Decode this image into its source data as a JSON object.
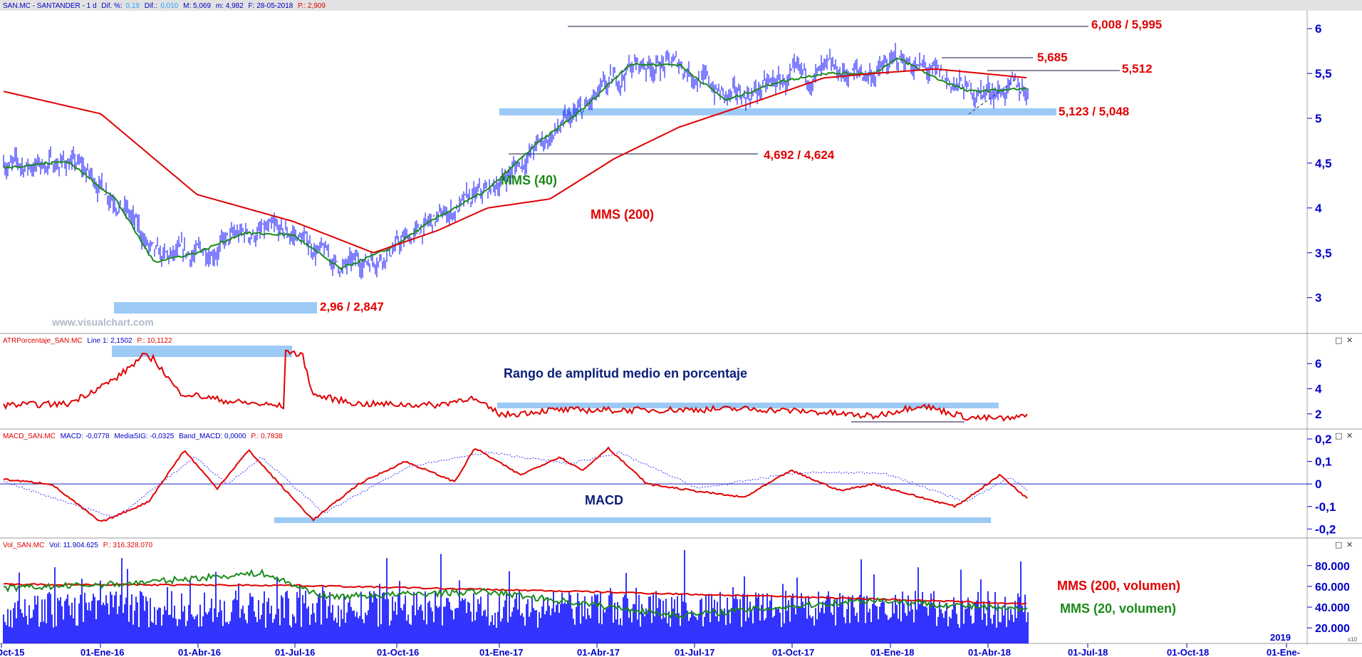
{
  "colors": {
    "price": "#0000ff",
    "mms40": "#1a8a1a",
    "mms200": "#e00000",
    "zone": "#9ccaf5",
    "axis_text": "#0000c8",
    "label_red": "#e00000",
    "label_navy": "#0a1e78"
  },
  "panels": {
    "price": {
      "header": {
        "symbol": "SAN.MC - SANTANDER - 1 d",
        "dif_pct_label": "Dif. %:",
        "dif_pct": "0,19",
        "dif_label": "Dif.:",
        "dif": "0,010",
        "max": "M: 5,069",
        "min": "m: 4,982",
        "date": "F: 28-05-2018",
        "p": "P.: 2,909"
      },
      "watermark": "www.visualchart.com",
      "labels": {
        "mms40": "MMS (40)",
        "mms200": "MMS (200)"
      }
    },
    "atr": {
      "header": {
        "name": "ATRPorcentaje_SAN.MC",
        "line": "Line 1: 2,1502",
        "p": "P.: 10,1122"
      },
      "caption": "Rango de amplitud medio en porcentaje"
    },
    "macd": {
      "header": {
        "name": "MACD_SAN.MC",
        "macd": "MACD: -0,0778",
        "signal": "MediaSIG: -0,0325",
        "band": "Band_MACD: 0,0000",
        "p": "P.: 0,7838"
      },
      "caption": "MACD"
    },
    "volume": {
      "header": {
        "name": "Vol_SAN.MC",
        "vol": "Vol: 11.904.625",
        "p": "P.: 316.328.070"
      },
      "labels": {
        "mms200": "MMS (200, volumen)",
        "mms20": "MMS (20, volumen)"
      },
      "year_marker": "2019",
      "scale_marker": "x10"
    }
  },
  "controls": {
    "restore": "□",
    "close": "✕"
  },
  "chart_data": [
    {
      "type": "line",
      "panel": "price",
      "y_ticks": [
        3,
        3.5,
        4,
        4.5,
        5,
        5.5,
        6
      ],
      "y_tick_labels": [
        "3",
        "3,5",
        "4",
        "4,5",
        "5",
        "5,5",
        "6"
      ],
      "ylim": [
        2.6,
        6.2
      ],
      "x_ticks": [
        "Oct-15",
        "01-Ene-16",
        "01-Abr-16",
        "01-Jul-16",
        "01-Oct-16",
        "01-Ene-17",
        "01-Abr-17",
        "01-Jul-17",
        "01-Oct-17",
        "01-Ene-18",
        "01-Abr-18",
        "01-Jul-18",
        "01-Oct-18",
        "01-Ene-"
      ],
      "series": [
        {
          "name": "MMS (40)",
          "x": [
            "2015-10-01",
            "2015-12-01",
            "2016-01-15",
            "2016-02-20",
            "2016-04-01",
            "2016-05-15",
            "2016-07-01",
            "2016-08-15",
            "2016-10-01",
            "2016-11-15",
            "2017-01-01",
            "2017-02-15",
            "2017-04-01",
            "2017-05-15",
            "2017-07-01",
            "2017-08-15",
            "2017-10-01",
            "2017-11-15",
            "2018-01-01",
            "2018-01-25",
            "2018-03-01",
            "2018-04-01",
            "2018-05-28"
          ],
          "values": [
            4.45,
            4.52,
            4.1,
            3.4,
            3.5,
            3.72,
            3.7,
            3.32,
            3.55,
            3.9,
            4.2,
            4.7,
            5.1,
            5.6,
            5.6,
            5.2,
            5.4,
            5.5,
            5.5,
            5.67,
            5.45,
            5.3,
            5.33
          ]
        },
        {
          "name": "MMS (200)",
          "x": [
            "2015-10-01",
            "2016-01-01",
            "2016-04-01",
            "2016-07-01",
            "2016-09-15",
            "2016-11-15",
            "2017-01-01",
            "2017-03-01",
            "2017-05-01",
            "2017-07-01",
            "2017-09-15",
            "2017-11-15",
            "2018-01-01",
            "2018-03-01",
            "2018-05-28"
          ],
          "values": [
            5.3,
            5.05,
            4.15,
            3.85,
            3.5,
            3.75,
            4.0,
            4.1,
            4.55,
            4.9,
            5.2,
            5.45,
            5.5,
            5.55,
            5.45
          ]
        }
      ],
      "annotations": [
        {
          "text": "6,008 / 5,995",
          "level": 6.008
        },
        {
          "text": "5,685",
          "level": 5.685
        },
        {
          "text": "5,512",
          "level": 5.512
        },
        {
          "text": "5,123 / 5,048",
          "level": 5.09
        },
        {
          "text": "4,692 / 4,624",
          "level": 4.624
        },
        {
          "text": "2,96 / 2,847",
          "level": 2.9
        }
      ]
    },
    {
      "type": "line",
      "panel": "atr",
      "y_ticks": [
        2,
        4,
        6
      ],
      "ylim": [
        0.8,
        7.6
      ],
      "series": [
        {
          "name": "ATRPorcentaje_SAN.MC",
          "x": [
            "2015-10-01",
            "2015-12-01",
            "2016-01-15",
            "2016-02-10",
            "2016-02-20",
            "2016-03-15",
            "2016-05-01",
            "2016-06-23",
            "2016-06-24",
            "2016-07-10",
            "2016-07-20",
            "2016-09-01",
            "2016-11-15",
            "2016-12-15",
            "2017-01-15",
            "2017-03-01",
            "2017-06-01",
            "2017-09-01",
            "2017-11-01",
            "2018-01-01",
            "2018-02-15",
            "2018-04-01",
            "2018-05-15",
            "2018-05-28"
          ],
          "values": [
            2.7,
            2.8,
            4.8,
            6.6,
            6.4,
            3.7,
            3.0,
            2.6,
            7.1,
            6.6,
            3.5,
            2.8,
            2.7,
            3.3,
            1.9,
            2.3,
            2.3,
            2.4,
            2.2,
            1.8,
            2.7,
            1.7,
            1.6,
            2.15
          ]
        }
      ]
    },
    {
      "type": "line",
      "panel": "macd",
      "y_ticks": [
        -0.2,
        -0.1,
        0,
        0.1,
        0.2
      ],
      "y_tick_labels": [
        "-0,2",
        "-0,1",
        "0",
        "0,1",
        "0,2"
      ],
      "ylim": [
        -0.24,
        0.2
      ],
      "series": [
        {
          "name": "MACD",
          "x": [
            "2015-10-01",
            "2015-11-15",
            "2016-01-01",
            "2016-02-15",
            "2016-03-20",
            "2016-04-20",
            "2016-05-20",
            "2016-06-24",
            "2016-07-20",
            "2016-09-01",
            "2016-10-15",
            "2016-12-01",
            "2016-12-20",
            "2017-02-01",
            "2017-03-10",
            "2017-04-01",
            "2017-04-25",
            "2017-06-01",
            "2017-07-15",
            "2017-09-01",
            "2017-10-15",
            "2017-12-01",
            "2018-01-01",
            "2018-02-15",
            "2018-03-20",
            "2018-05-01",
            "2018-05-28"
          ],
          "values": [
            0.02,
            0.0,
            -0.17,
            -0.08,
            0.15,
            -0.02,
            0.15,
            -0.03,
            -0.16,
            0.0,
            0.1,
            0.01,
            0.16,
            0.04,
            0.12,
            0.06,
            0.16,
            0.0,
            -0.03,
            -0.06,
            0.06,
            -0.03,
            0.0,
            -0.06,
            -0.1,
            0.04,
            -0.07
          ]
        },
        {
          "name": "MediaSIG",
          "x": [
            "2015-10-01",
            "2016-01-15",
            "2016-03-30",
            "2016-04-30",
            "2016-06-01",
            "2016-07-30",
            "2016-10-20",
            "2017-01-01",
            "2017-03-20",
            "2017-05-05",
            "2017-07-20",
            "2017-10-20",
            "2018-01-10",
            "2018-03-30",
            "2018-05-10",
            "2018-05-28"
          ],
          "values": [
            0.01,
            -0.15,
            0.12,
            0.0,
            0.12,
            -0.13,
            0.08,
            0.14,
            0.09,
            0.14,
            -0.02,
            0.05,
            0.05,
            -0.08,
            0.03,
            -0.03
          ]
        }
      ]
    },
    {
      "type": "bar",
      "panel": "volume",
      "y_ticks": [
        20000,
        40000,
        60000,
        80000
      ],
      "y_tick_labels": [
        "20.000",
        "40.000",
        "60.000",
        "80.000"
      ],
      "ylim": [
        5000,
        97000
      ],
      "series": [
        {
          "name": "Vol",
          "baseline": 38000,
          "spread": 36000
        },
        {
          "name": "MMS (200, volumen)",
          "x": [
            "2015-10-01",
            "2016-07-01",
            "2017-04-01",
            "2018-01-01",
            "2018-05-28"
          ],
          "values": [
            62000,
            61000,
            55000,
            48000,
            43000
          ]
        },
        {
          "name": "MMS (20, volumen)",
          "x": [
            "2015-10-01",
            "2016-02-01",
            "2016-06-01",
            "2016-08-01",
            "2017-01-01",
            "2017-07-01",
            "2018-01-01",
            "2018-05-28"
          ],
          "values": [
            58000,
            63000,
            73000,
            50000,
            55000,
            32000,
            47000,
            37000
          ]
        }
      ]
    }
  ]
}
